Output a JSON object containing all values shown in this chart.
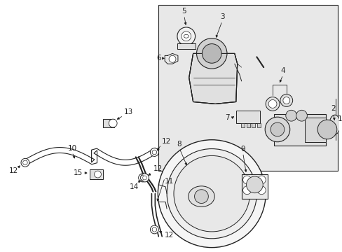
{
  "bg_color": "#ffffff",
  "box_bg": "#e8e8e8",
  "lc": "#222222",
  "fig_w": 4.89,
  "fig_h": 3.6,
  "dpi": 100
}
